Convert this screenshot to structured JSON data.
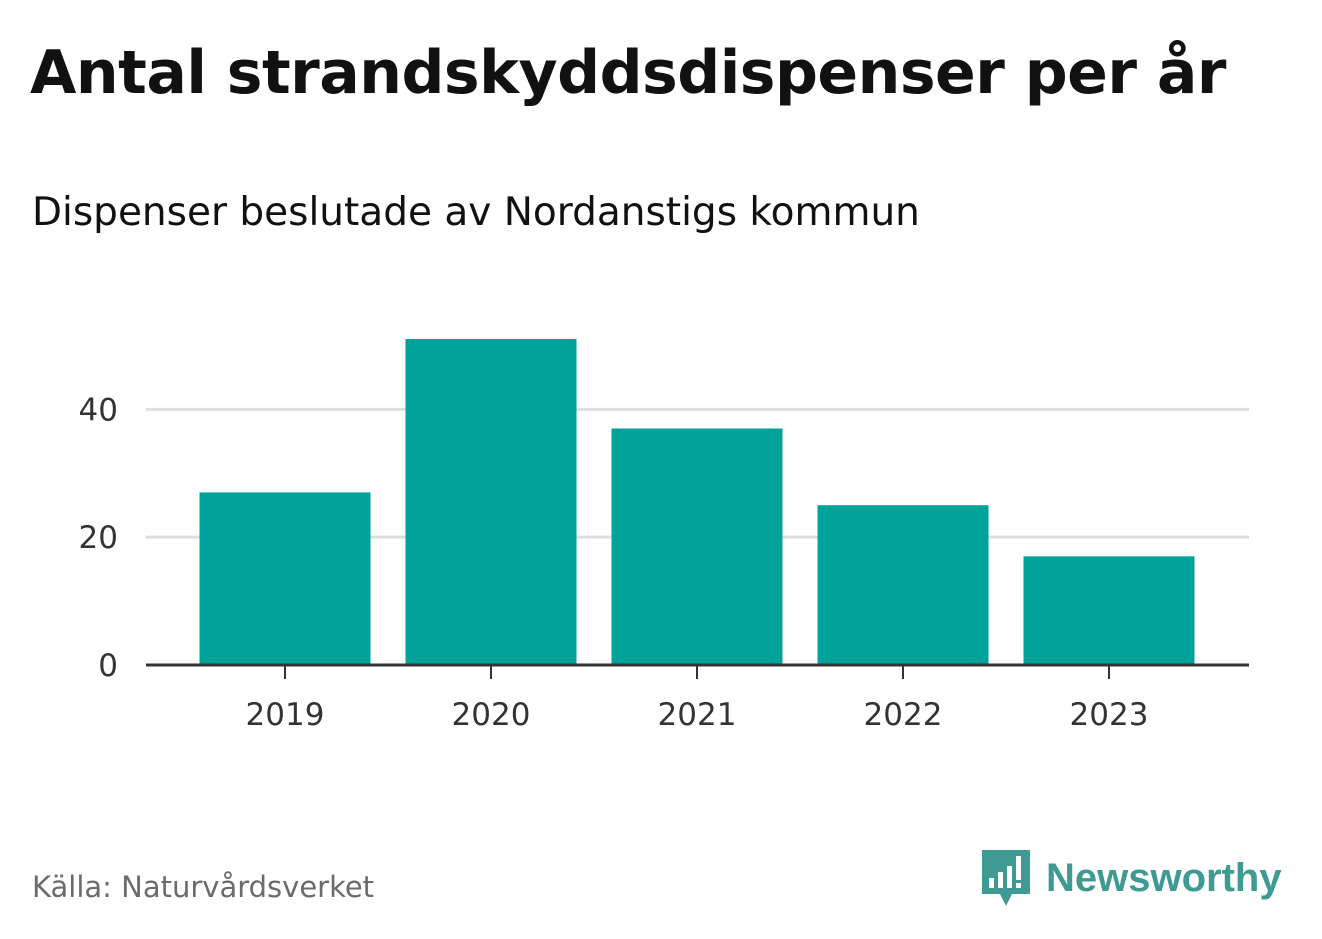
{
  "title": "Antal strandskyddsdispenser per år",
  "subtitle": "Dispenser beslutade av Nordanstigs kommun",
  "source": "Källa: Naturvårdsverket",
  "brand": {
    "name": "Newsworthy",
    "icon": "newsworthy-logo-icon",
    "color": "#3f9a94"
  },
  "chart_data": {
    "type": "bar",
    "title": "Antal strandskyddsdispenser per år",
    "subtitle": "Dispenser beslutade av Nordanstigs kommun",
    "categories": [
      "2019",
      "2020",
      "2021",
      "2022",
      "2023"
    ],
    "values": [
      27,
      51,
      37,
      25,
      17
    ],
    "xlabel": "",
    "ylabel": "",
    "ylim": [
      0,
      51
    ],
    "yticks": [
      "0",
      "20",
      "40"
    ],
    "grid": true,
    "bar_color": "#00a39a"
  }
}
